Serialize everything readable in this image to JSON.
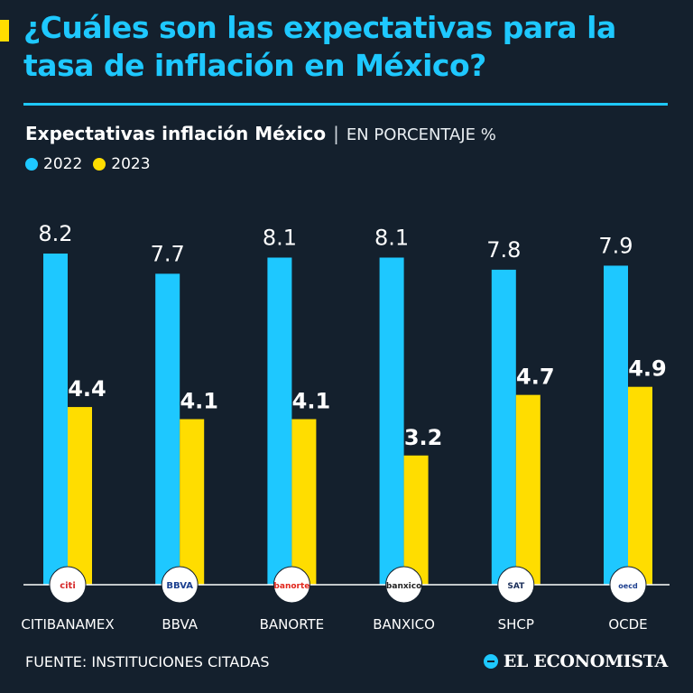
{
  "header": {
    "title": "¿Cuáles son las expectativas para la tasa de inflación en México?"
  },
  "colors": {
    "background": "#14202d",
    "series_2022": "#1ec8ff",
    "series_2023": "#ffdd00"
  },
  "chart_data": {
    "type": "bar",
    "title": "Expectativas inflación México",
    "subtitle": "EN PORCENTAJE %",
    "categories": [
      "CITIBANAMEX",
      "BBVA",
      "BANORTE",
      "BANXICO",
      "SHCP",
      "OCDE"
    ],
    "logos": [
      "citi",
      "BBVA",
      "banorte",
      "banxico",
      "SAT",
      "oecd"
    ],
    "series": [
      {
        "name": "2022",
        "values": [
          8.2,
          7.7,
          8.1,
          8.1,
          7.8,
          7.9
        ],
        "labels": [
          "8.2",
          "7.7",
          "8.1",
          "8.1",
          "7.8",
          "7.9"
        ]
      },
      {
        "name": "2023",
        "values": [
          4.4,
          4.1,
          4.1,
          3.2,
          4.7,
          4.9
        ],
        "labels": [
          "4.4",
          "4.1",
          "4.1",
          "3.2",
          "4.7",
          "4.9"
        ]
      }
    ],
    "ylim": [
      0,
      8.2
    ],
    "legend": "top-left"
  },
  "footer": {
    "source": "FUENTE:  INSTITUCIONES CITADAS",
    "brand": "EL ECONOMISTA"
  }
}
